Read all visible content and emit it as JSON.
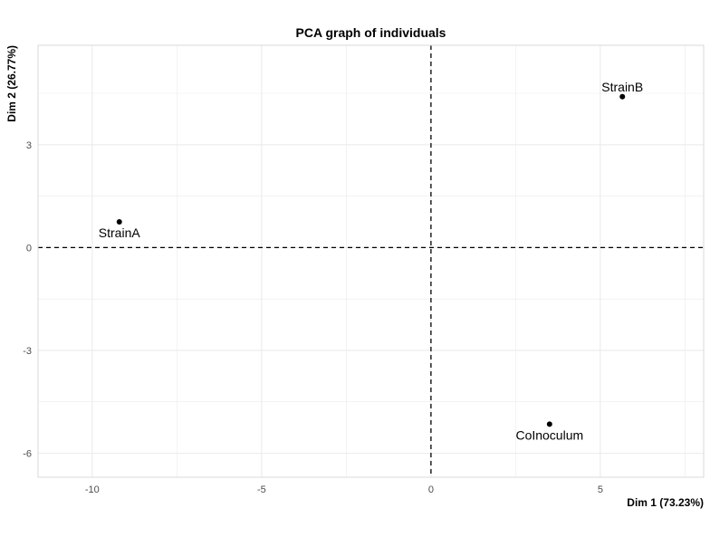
{
  "chart_data": {
    "type": "scatter",
    "title": "PCA graph of individuals",
    "xlabel": "Dim 1 (73.23%)",
    "ylabel": "Dim 2 (26.77%)",
    "xlim": [
      -11.6,
      8.05
    ],
    "ylim": [
      -6.7,
      5.9
    ],
    "xticks": [
      -10,
      -5,
      0,
      5
    ],
    "xtick_labels": [
      "-10",
      "-5",
      "0",
      "5"
    ],
    "yticks": [
      3,
      0,
      -3,
      -6
    ],
    "ytick_labels": [
      "3",
      "0",
      "-3",
      "-6"
    ],
    "grid": true,
    "points": [
      {
        "label": "StrainA",
        "x": -9.2,
        "y": 0.75
      },
      {
        "label": "StrainB",
        "x": 5.65,
        "y": 4.4
      },
      {
        "label": "CoInoculum",
        "x": 3.5,
        "y": -5.15
      }
    ],
    "reference_lines": {
      "x": 0,
      "y": 0,
      "style": "dashed"
    },
    "colors": {
      "point": "#000000",
      "grid": "#ebebeb",
      "panel_border": "#d9d9d9"
    }
  }
}
